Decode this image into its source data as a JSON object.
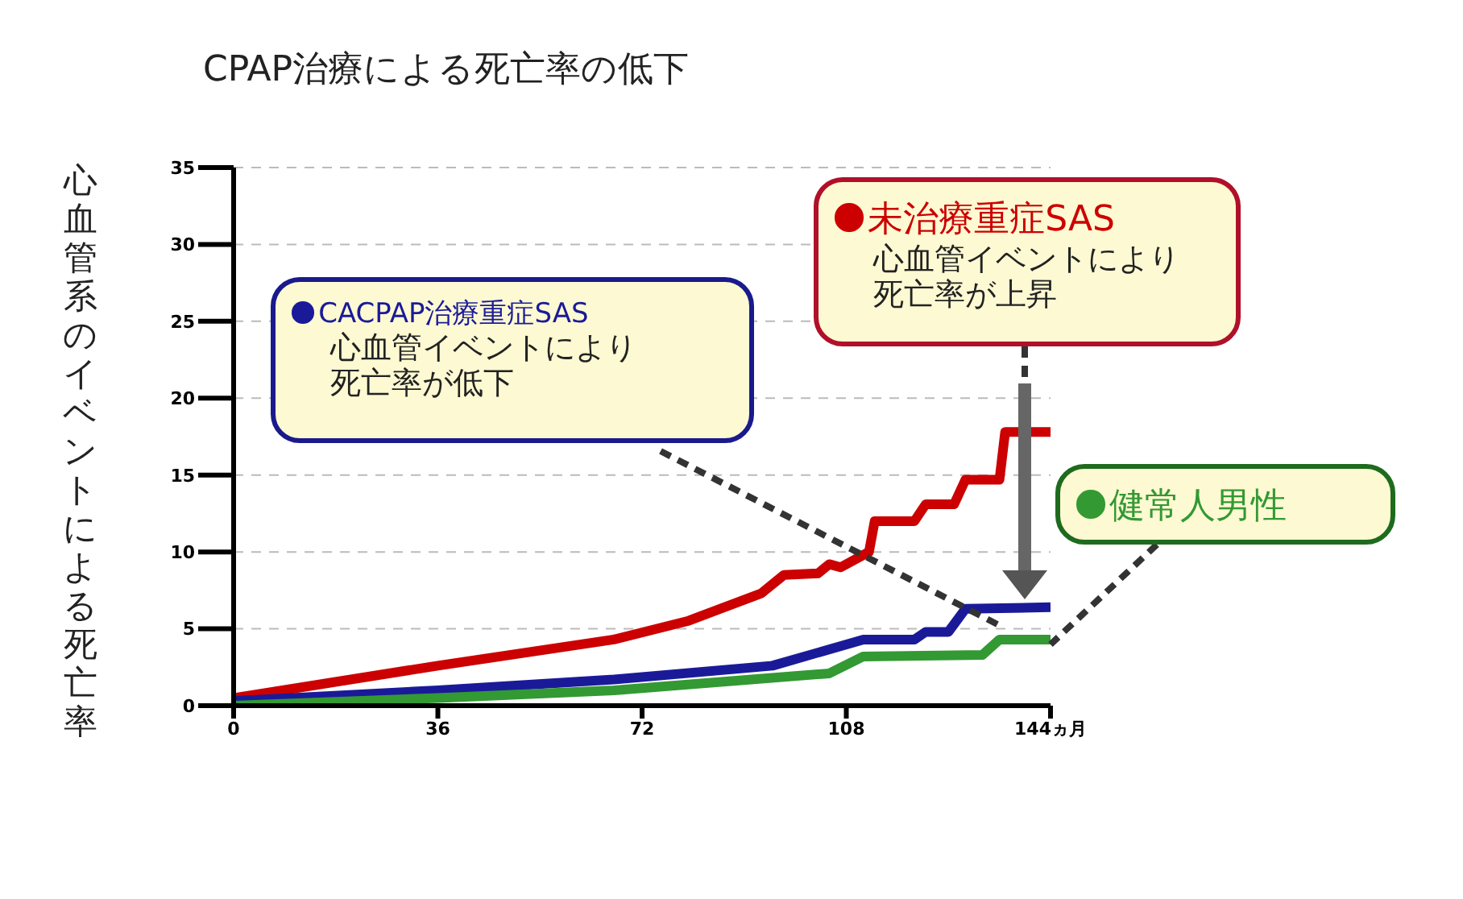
{
  "chart_data": {
    "type": "line",
    "title": "CPAP治療による死亡率の低下",
    "ylabel": "心血管系のイベントによる死亡率",
    "xlim": [
      0,
      144
    ],
    "xticks": [
      0,
      36,
      72,
      108,
      {
        "value": 144,
        "label": "144ヵ月"
      }
    ],
    "ylim": [
      0,
      35
    ],
    "yticks": [
      0,
      5,
      10,
      15,
      20,
      25,
      30,
      35
    ],
    "grid": "y",
    "legend": "top",
    "marker": "none",
    "line_style": "solid",
    "series": [
      {
        "name": "未治療重症SAS",
        "color": "#cc0000",
        "x": [
          0,
          36,
          67,
          80,
          93,
          97,
          103,
          105,
          107,
          112,
          113,
          120,
          122,
          127,
          129,
          135,
          136,
          144
        ],
        "values": [
          0.5,
          2.6,
          4.3,
          5.5,
          7.3,
          8.5,
          8.6,
          9.2,
          9.0,
          10,
          12.0,
          12.0,
          13.1,
          13.1,
          14.7,
          14.7,
          17.8,
          17.8
        ]
      },
      {
        "name": "CACPAP治療重症SAS",
        "color": "#1a1a99",
        "x": [
          0,
          36,
          67,
          95,
          111,
          120,
          122,
          126,
          129,
          144
        ],
        "values": [
          0.3,
          1.0,
          1.7,
          2.6,
          4.3,
          4.3,
          4.8,
          4.8,
          6.3,
          6.4
        ]
      },
      {
        "name": "健常人男性",
        "color": "#339933",
        "x": [
          0,
          36,
          67,
          105,
          111,
          132,
          135,
          144
        ],
        "values": [
          0,
          0.5,
          1.0,
          2.1,
          3.2,
          3.3,
          4.3,
          4.3
        ]
      }
    ],
    "annotations": [
      "心血管イベントにより",
      "死亡率が上昇",
      "心血管イベントにより",
      "死亡率が低下"
    ]
  }
}
